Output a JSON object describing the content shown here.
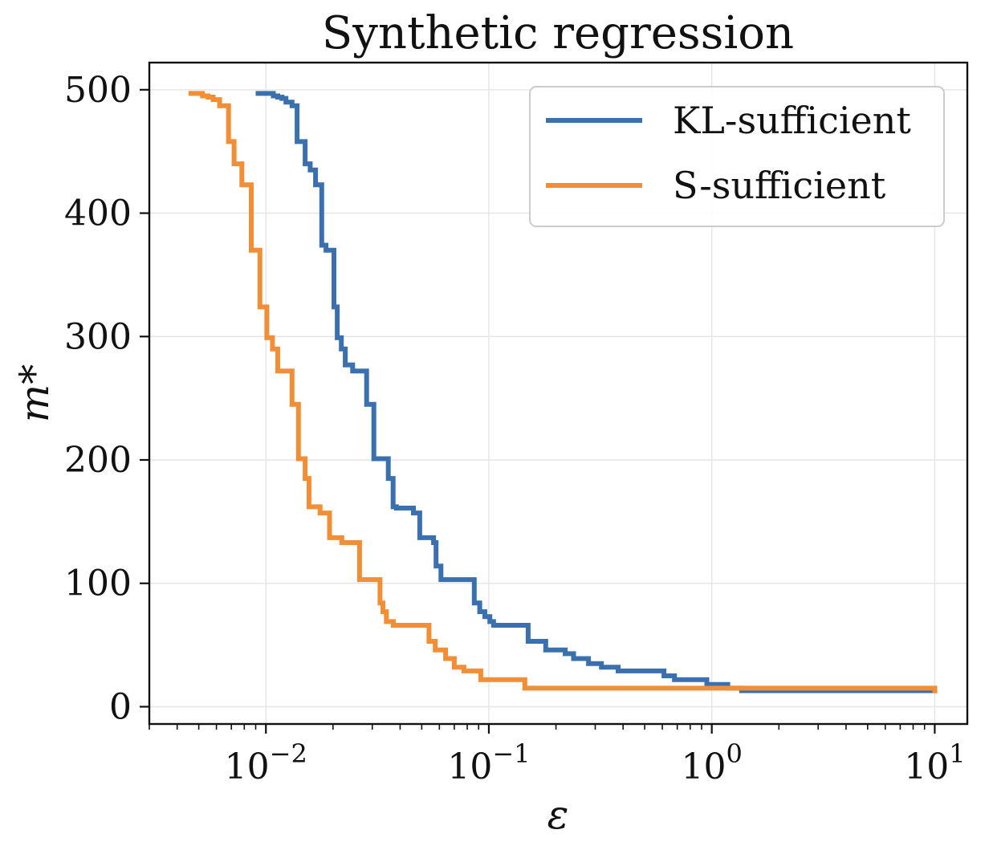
{
  "chart_data": {
    "type": "line",
    "title": "Synthetic regression",
    "xlabel": "ε",
    "ylabel": "m*",
    "xscale": "log",
    "xlim": [
      0.003,
      14
    ],
    "ylim": [
      -14,
      522
    ],
    "grid": true,
    "legend_position": "top-right",
    "x_ticks": [
      {
        "value": 0.01,
        "base": "10",
        "exp": "−2"
      },
      {
        "value": 0.1,
        "base": "10",
        "exp": "−1"
      },
      {
        "value": 1,
        "base": "10",
        "exp": "0"
      },
      {
        "value": 10,
        "base": "10",
        "exp": "1"
      }
    ],
    "y_ticks": [
      {
        "value": 0,
        "label": "0"
      },
      {
        "value": 100,
        "label": "100"
      },
      {
        "value": 200,
        "label": "200"
      },
      {
        "value": 300,
        "label": "300"
      },
      {
        "value": 400,
        "label": "400"
      },
      {
        "value": 500,
        "label": "500"
      }
    ],
    "series": [
      {
        "name": "KL-sufficient",
        "color": "#3a70ad",
        "x": [
          0.009,
          0.0102,
          0.0108,
          0.0113,
          0.0118,
          0.0123,
          0.0131,
          0.0138,
          0.015,
          0.0158,
          0.0167,
          0.0178,
          0.0186,
          0.0202,
          0.0209,
          0.0218,
          0.0227,
          0.0245,
          0.0283,
          0.0305,
          0.0354,
          0.0372,
          0.0385,
          0.0459,
          0.049,
          0.0565,
          0.058,
          0.061,
          0.086,
          0.091,
          0.096,
          0.101,
          0.105,
          0.15,
          0.18,
          0.22,
          0.24,
          0.28,
          0.32,
          0.38,
          0.61,
          0.68,
          0.95,
          1.18,
          1.36,
          10.0
        ],
        "y": [
          497,
          497,
          495,
          494,
          493,
          490,
          487,
          458,
          440,
          435,
          423,
          374,
          370,
          324,
          299,
          290,
          277,
          272,
          245,
          201,
          185,
          162,
          161,
          157,
          137,
          133,
          114,
          103,
          84,
          77,
          73,
          69,
          66,
          53,
          46,
          43,
          39,
          35,
          32,
          29,
          25,
          22,
          18,
          15,
          13,
          11
        ]
      },
      {
        "name": "S-sufficient",
        "color": "#f28e35",
        "x": [
          0.0045,
          0.0052,
          0.0055,
          0.0058,
          0.0062,
          0.0068,
          0.0072,
          0.0078,
          0.0086,
          0.0094,
          0.0101,
          0.0107,
          0.0113,
          0.0131,
          0.014,
          0.015,
          0.0156,
          0.0175,
          0.0193,
          0.0219,
          0.0263,
          0.0325,
          0.0335,
          0.0347,
          0.0373,
          0.0539,
          0.0575,
          0.064,
          0.07,
          0.0773,
          0.092,
          0.145,
          10.0
        ],
        "y": [
          497,
          495,
          494,
          492,
          487,
          458,
          440,
          423,
          370,
          324,
          299,
          290,
          272,
          245,
          201,
          185,
          162,
          157,
          137,
          133,
          103,
          84,
          77,
          69,
          66,
          53,
          46,
          39,
          32,
          29,
          22,
          15,
          11
        ]
      }
    ]
  }
}
